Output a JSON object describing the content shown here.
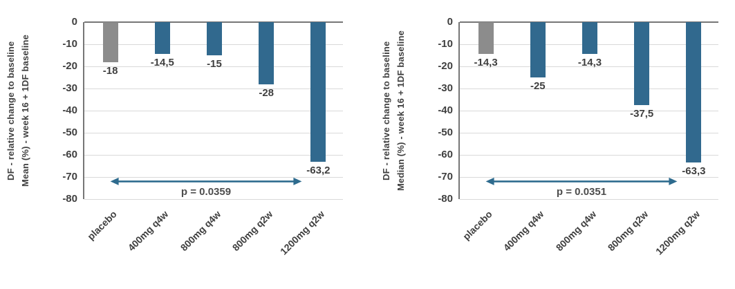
{
  "page": {
    "background": "#ffffff"
  },
  "colors": {
    "bar_blue": "#31698E",
    "bar_gray": "#8C8C8C",
    "gridline": "#D9D9D9",
    "axis_line": "#767676",
    "tick_text": "#3F3F3F",
    "p_text": "#4D4D4D",
    "arrow": "#2E6B8E"
  },
  "chart_data": [
    {
      "type": "bar",
      "title": "",
      "xlabel": "",
      "ylabel_lines": [
        "DF - relative change to baseline",
        "Mean (%) - week 16 + 1DF baseline"
      ],
      "categories": [
        "placebo",
        "400mg q4w",
        "800mg q4w",
        "800mg q2w",
        "1200mg q2w"
      ],
      "values": [
        -18,
        -14.5,
        -15,
        -28,
        -63.2
      ],
      "value_labels": [
        "-18",
        "-14,5",
        "-15",
        "-28",
        "-63,2"
      ],
      "bar_colors": [
        "#8C8C8C",
        "#31698E",
        "#31698E",
        "#31698E",
        "#31698E"
      ],
      "ylim": [
        -80,
        0
      ],
      "yticks": [
        "0",
        "-10",
        "-20",
        "-30",
        "-40",
        "-50",
        "-60",
        "-70",
        "-80"
      ],
      "grid": true,
      "legend": false,
      "annotation": {
        "text": "p = 0.0359",
        "arrow_from_category": "placebo",
        "arrow_to_category": "1200mg q2w",
        "arrow_y_value": -72
      }
    },
    {
      "type": "bar",
      "title": "",
      "xlabel": "",
      "ylabel_lines": [
        "DF - relative change to baseline",
        "Median (%) - week 16 + 1DF baseline"
      ],
      "categories": [
        "placebo",
        "400mg q4w",
        "800mg q4w",
        "800mg q2w",
        "1200mg q2w"
      ],
      "values": [
        -14.3,
        -25,
        -14.3,
        -37.5,
        -63.3
      ],
      "value_labels": [
        "-14,3",
        "-25",
        "-14,3",
        "-37,5",
        "-63,3"
      ],
      "bar_colors": [
        "#8C8C8C",
        "#31698E",
        "#31698E",
        "#31698E",
        "#31698E"
      ],
      "ylim": [
        -80,
        0
      ],
      "yticks": [
        "0",
        "-10",
        "-20",
        "-30",
        "-40",
        "-50",
        "-60",
        "-70",
        "-80"
      ],
      "grid": true,
      "legend": false,
      "annotation": {
        "text": "p = 0.0351",
        "arrow_from_category": "placebo",
        "arrow_to_category": "1200mg q2w",
        "arrow_y_value": -72
      }
    }
  ]
}
